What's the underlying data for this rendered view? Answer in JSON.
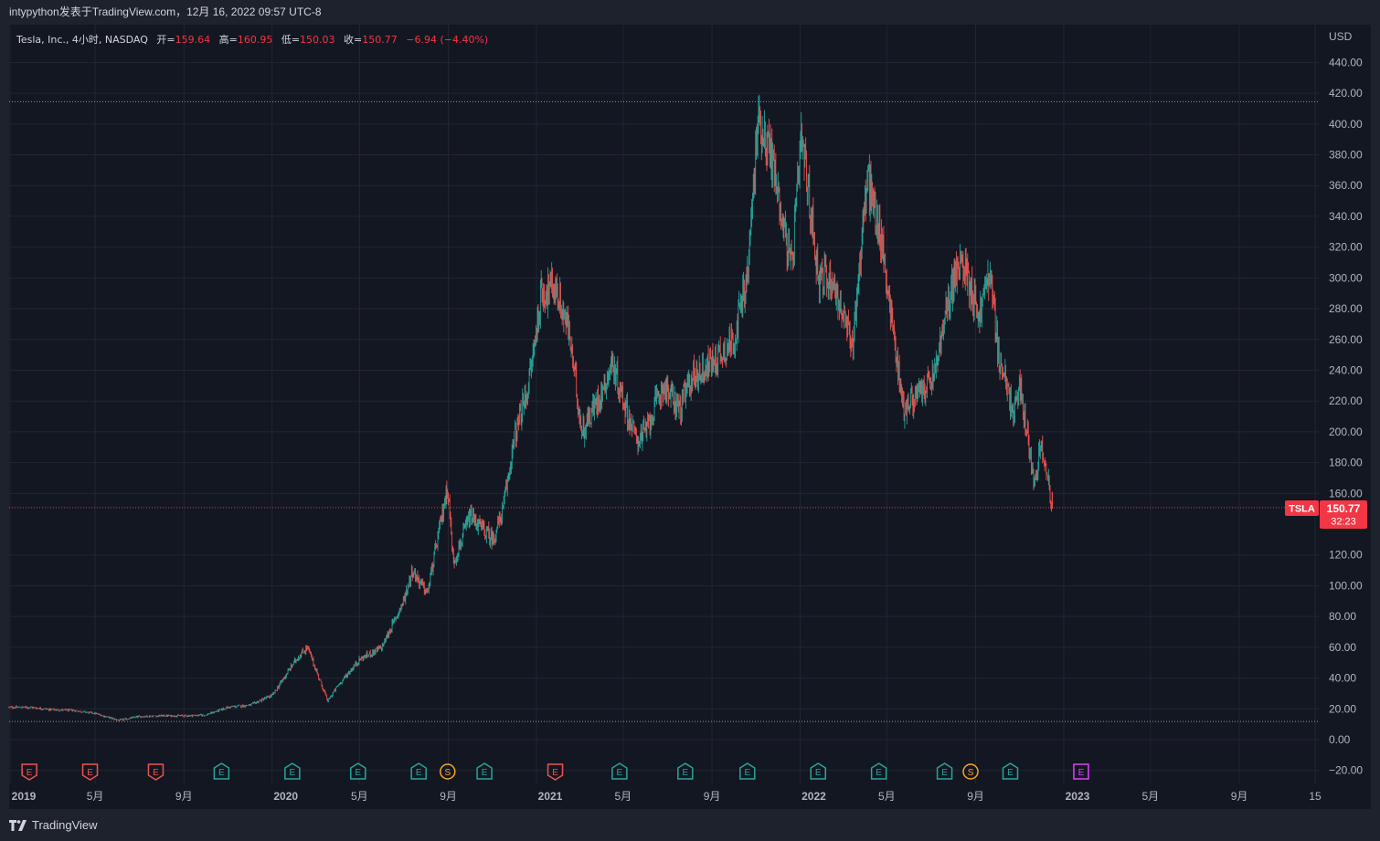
{
  "header": {
    "publish_line": "intypython发表于TradingView.com，12月 16, 2022 09:57 UTC-8"
  },
  "legend": {
    "symbol_desc": "Tesla, Inc., 4小时, NASDAQ",
    "open_label": "开=",
    "open": "159.64",
    "high_label": "高=",
    "high": "160.95",
    "low_label": "低=",
    "low": "150.03",
    "close_label": "收=",
    "close": "150.77",
    "change": "−6.94 (−4.40%)"
  },
  "price_tag": {
    "ticker": "TSLA",
    "price": "150.77",
    "countdown": "32:23"
  },
  "footer": {
    "brand": "TradingView"
  },
  "colors": {
    "up": "#26a69a",
    "down": "#ef5350",
    "background": "#131722",
    "grid": "#232632",
    "accent_tag": "#f23645",
    "dividend_icon": "#f5a623",
    "future_earnings": "#e040fb"
  },
  "chart_data": {
    "type": "candlestick",
    "symbol": "TSLA",
    "exchange": "NASDAQ",
    "interval": "4小时",
    "currency": "USD",
    "y_axis_label": "USD",
    "ylim": [
      -30,
      450
    ],
    "y_ticks": [
      -20,
      0,
      20,
      40,
      60,
      80,
      100,
      120,
      160,
      180,
      200,
      220,
      240,
      260,
      280,
      300,
      320,
      340,
      360,
      380,
      400,
      420,
      440
    ],
    "x_ticks": [
      "2019",
      "5月",
      "9月",
      "2020",
      "5月",
      "9月",
      "2021",
      "5月",
      "9月",
      "2022",
      "5月",
      "9月",
      "2023",
      "5月",
      "9月",
      "15"
    ],
    "x_range": [
      "2019-01-02",
      "2023-12-20"
    ],
    "last_close": 150.77,
    "reference_lines": [
      {
        "label": "high",
        "value": 414.5
      },
      {
        "label": "low",
        "value": 11.8
      },
      {
        "label": "last",
        "value": 150.77
      }
    ],
    "approx_price_path": [
      [
        "2019-01-02",
        21.0
      ],
      [
        "2019-02-01",
        21.0
      ],
      [
        "2019-03-01",
        19.5
      ],
      [
        "2019-04-01",
        19.0
      ],
      [
        "2019-05-01",
        17.0
      ],
      [
        "2019-06-03",
        12.5
      ],
      [
        "2019-07-01",
        15.0
      ],
      [
        "2019-08-01",
        15.5
      ],
      [
        "2019-09-03",
        15.5
      ],
      [
        "2019-10-01",
        16.0
      ],
      [
        "2019-11-01",
        21.0
      ],
      [
        "2019-12-02",
        22.5
      ],
      [
        "2020-01-02",
        29.0
      ],
      [
        "2020-02-03",
        52.0
      ],
      [
        "2020-02-19",
        60.0
      ],
      [
        "2020-03-18",
        25.0
      ],
      [
        "2020-04-01",
        35.0
      ],
      [
        "2020-05-01",
        52.0
      ],
      [
        "2020-06-01",
        60.0
      ],
      [
        "2020-07-01",
        90.0
      ],
      [
        "2020-07-13",
        110.0
      ],
      [
        "2020-08-03",
        95.0
      ],
      [
        "2020-08-31",
        165.0
      ],
      [
        "2020-09-08",
        115.0
      ],
      [
        "2020-10-01",
        145.0
      ],
      [
        "2020-11-02",
        130.0
      ],
      [
        "2020-11-16",
        150.0
      ],
      [
        "2020-12-01",
        195.0
      ],
      [
        "2020-12-21",
        230.0
      ],
      [
        "2021-01-08",
        290.0
      ],
      [
        "2021-01-26",
        295.0
      ],
      [
        "2021-02-15",
        265.0
      ],
      [
        "2021-03-05",
        200.0
      ],
      [
        "2021-04-05",
        230.0
      ],
      [
        "2021-04-15",
        245.0
      ],
      [
        "2021-05-19",
        195.0
      ],
      [
        "2021-06-01",
        200.0
      ],
      [
        "2021-06-25",
        230.0
      ],
      [
        "2021-07-19",
        215.0
      ],
      [
        "2021-08-03",
        235.0
      ],
      [
        "2021-09-01",
        245.0
      ],
      [
        "2021-10-01",
        260.0
      ],
      [
        "2021-10-20",
        300.0
      ],
      [
        "2021-11-04",
        405.0
      ],
      [
        "2021-11-22",
        380.0
      ],
      [
        "2021-12-20",
        305.0
      ],
      [
        "2022-01-03",
        390.0
      ],
      [
        "2022-01-27",
        300.0
      ],
      [
        "2022-02-14",
        300.0
      ],
      [
        "2022-03-14",
        255.0
      ],
      [
        "2022-04-04",
        365.0
      ],
      [
        "2022-04-25",
        320.0
      ],
      [
        "2022-05-24",
        215.0
      ],
      [
        "2022-06-15",
        225.0
      ],
      [
        "2022-07-05",
        235.0
      ],
      [
        "2022-08-01",
        300.0
      ],
      [
        "2022-08-16",
        310.0
      ],
      [
        "2022-09-06",
        275.0
      ],
      [
        "2022-09-20",
        305.0
      ],
      [
        "2022-10-03",
        250.0
      ],
      [
        "2022-10-24",
        210.0
      ],
      [
        "2022-11-01",
        230.0
      ],
      [
        "2022-11-21",
        168.0
      ],
      [
        "2022-12-01",
        195.0
      ],
      [
        "2022-12-16",
        150.77
      ]
    ],
    "events": [
      {
        "type": "earnings",
        "date": "2019-01-30",
        "label": "E",
        "result": "miss"
      },
      {
        "type": "earnings",
        "date": "2019-04-24",
        "label": "E",
        "result": "miss"
      },
      {
        "type": "earnings",
        "date": "2019-07-24",
        "label": "E",
        "result": "miss"
      },
      {
        "type": "earnings",
        "date": "2019-10-23",
        "label": "E",
        "result": "beat"
      },
      {
        "type": "earnings",
        "date": "2020-01-29",
        "label": "E",
        "result": "beat"
      },
      {
        "type": "earnings",
        "date": "2020-04-29",
        "label": "E",
        "result": "beat"
      },
      {
        "type": "earnings",
        "date": "2020-07-22",
        "label": "E",
        "result": "beat"
      },
      {
        "type": "split",
        "date": "2020-08-31",
        "label": "S"
      },
      {
        "type": "earnings",
        "date": "2020-10-21",
        "label": "E",
        "result": "beat"
      },
      {
        "type": "earnings",
        "date": "2021-01-27",
        "label": "E",
        "result": "miss"
      },
      {
        "type": "earnings",
        "date": "2021-04-26",
        "label": "E",
        "result": "beat"
      },
      {
        "type": "earnings",
        "date": "2021-07-26",
        "label": "E",
        "result": "beat"
      },
      {
        "type": "earnings",
        "date": "2021-10-20",
        "label": "E",
        "result": "beat"
      },
      {
        "type": "earnings",
        "date": "2022-01-26",
        "label": "E",
        "result": "beat"
      },
      {
        "type": "earnings",
        "date": "2022-04-20",
        "label": "E",
        "result": "beat"
      },
      {
        "type": "earnings",
        "date": "2022-07-20",
        "label": "E",
        "result": "beat"
      },
      {
        "type": "split",
        "date": "2022-08-25",
        "label": "S"
      },
      {
        "type": "earnings",
        "date": "2022-10-19",
        "label": "E",
        "result": "beat"
      },
      {
        "type": "earnings",
        "date": "2023-01-25",
        "label": "E",
        "result": "upcoming"
      }
    ]
  }
}
